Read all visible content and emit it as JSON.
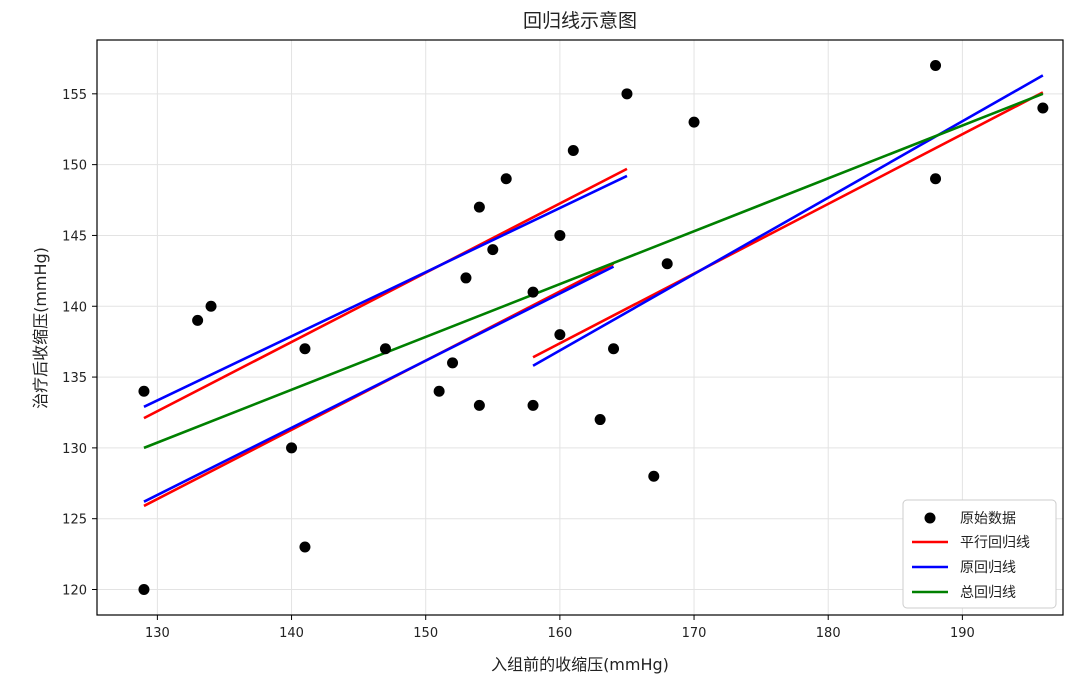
{
  "chart_data": {
    "type": "scatter",
    "title": "回归线示意图",
    "xlabel": "入组前的收缩压(mmHg)",
    "ylabel": "治疗后收缩压(mmHg)",
    "xlim": [
      125.5,
      197.5
    ],
    "ylim": [
      118.2,
      158.8
    ],
    "xticks": [
      130,
      140,
      150,
      160,
      170,
      180,
      190
    ],
    "yticks": [
      120,
      125,
      130,
      135,
      140,
      145,
      150,
      155
    ],
    "grid": true,
    "legend_position": "bottom-right",
    "scatter": {
      "name": "原始数据",
      "color": "#000000",
      "x": [
        129,
        129,
        133,
        134,
        140,
        141,
        141,
        147,
        151,
        152,
        153,
        154,
        154,
        155,
        156,
        158,
        158,
        160,
        160,
        161,
        163,
        164,
        165,
        167,
        168,
        170,
        188,
        188,
        196
      ],
      "y": [
        120,
        134,
        139,
        140,
        130,
        123,
        137,
        137,
        134,
        136,
        142,
        133,
        147,
        144,
        149,
        133,
        141,
        138,
        145,
        151,
        132,
        137,
        155,
        128,
        143,
        153,
        157,
        149,
        154
      ]
    },
    "series": [
      {
        "name": "平行回归线",
        "color": "#ff0000",
        "segments": [
          {
            "x": [
              129,
              165
            ],
            "y": [
              132.1,
              149.7
            ]
          },
          {
            "x": [
              129,
              164
            ],
            "y": [
              125.9,
              143.0
            ]
          },
          {
            "x": [
              158,
              196
            ],
            "y": [
              136.4,
              155.1
            ]
          }
        ]
      },
      {
        "name": "原回归线",
        "color": "#0000ff",
        "segments": [
          {
            "x": [
              129,
              165
            ],
            "y": [
              132.9,
              149.2
            ]
          },
          {
            "x": [
              129,
              164
            ],
            "y": [
              126.2,
              142.8
            ]
          },
          {
            "x": [
              158,
              196
            ],
            "y": [
              135.8,
              156.3
            ]
          }
        ]
      },
      {
        "name": "总回归线",
        "color": "#008000",
        "segments": [
          {
            "x": [
              129,
              196
            ],
            "y": [
              130.0,
              155.0
            ]
          }
        ]
      }
    ]
  }
}
